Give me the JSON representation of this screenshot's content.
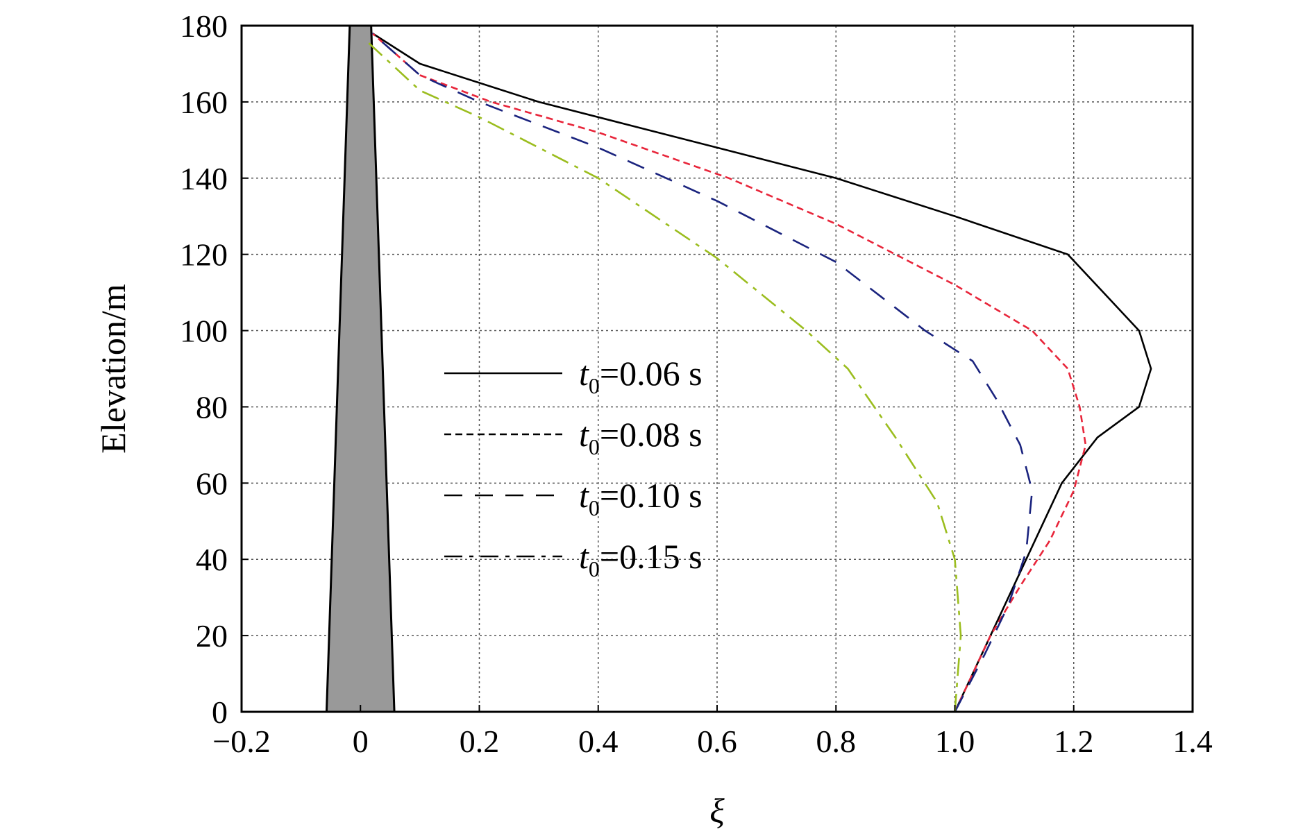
{
  "chart_data": {
    "type": "line",
    "title": "",
    "xlabel": "ξ",
    "ylabel": "Elevation/m",
    "xlim": [
      -0.2,
      1.4
    ],
    "ylim": [
      0,
      180
    ],
    "x_ticks": [
      "−0.2",
      "0",
      "0.2",
      "0.4",
      "0.6",
      "0.8",
      "1.0",
      "1.2",
      "1.4"
    ],
    "y_ticks": [
      "0",
      "20",
      "40",
      "60",
      "80",
      "100",
      "120",
      "140",
      "160",
      "180"
    ],
    "grid": true,
    "legend_position": "center",
    "structure_profile": {
      "description_shape": "tapered filled profile",
      "color": "#999999",
      "base_halfwidth": 0.057,
      "top_halfwidth": 0.018,
      "base_elevation": 0,
      "top_elevation": 180
    },
    "series": [
      {
        "name_var": "t",
        "name_sub": "0",
        "name_rest": "=0.06 s",
        "color": "#000000",
        "dash": "",
        "points": [
          [
            1.0,
            0
          ],
          [
            1.06,
            20
          ],
          [
            1.12,
            40
          ],
          [
            1.18,
            60
          ],
          [
            1.24,
            72
          ],
          [
            1.31,
            80
          ],
          [
            1.33,
            90
          ],
          [
            1.31,
            100
          ],
          [
            1.25,
            110
          ],
          [
            1.19,
            120
          ],
          [
            1.0,
            130
          ],
          [
            0.8,
            140
          ],
          [
            0.6,
            148
          ],
          [
            0.45,
            154
          ],
          [
            0.3,
            160
          ],
          [
            0.1,
            170
          ],
          [
            0.02,
            178
          ]
        ]
      },
      {
        "name_var": "t",
        "name_sub": "0",
        "name_rest": "=0.08 s",
        "color": "#e8253a",
        "dash": "10,6",
        "points": [
          [
            1.0,
            0
          ],
          [
            1.06,
            20
          ],
          [
            1.11,
            33
          ],
          [
            1.16,
            45
          ],
          [
            1.2,
            58
          ],
          [
            1.22,
            70
          ],
          [
            1.21,
            80
          ],
          [
            1.19,
            90
          ],
          [
            1.13,
            100
          ],
          [
            1.0,
            112
          ],
          [
            0.8,
            128
          ],
          [
            0.62,
            140
          ],
          [
            0.4,
            152
          ],
          [
            0.22,
            160
          ],
          [
            0.1,
            167
          ],
          [
            0.02,
            178
          ]
        ]
      },
      {
        "name_var": "t",
        "name_sub": "0",
        "name_rest": "=0.10 s",
        "color": "#1a237e",
        "dash": "26,18",
        "points": [
          [
            1.0,
            0
          ],
          [
            1.05,
            15
          ],
          [
            1.09,
            28
          ],
          [
            1.12,
            42
          ],
          [
            1.13,
            58
          ],
          [
            1.11,
            70
          ],
          [
            1.07,
            82
          ],
          [
            1.03,
            92
          ],
          [
            0.95,
            100
          ],
          [
            0.8,
            118
          ],
          [
            0.6,
            134
          ],
          [
            0.4,
            148
          ],
          [
            0.2,
            160
          ],
          [
            0.1,
            167
          ],
          [
            0.02,
            178
          ]
        ]
      },
      {
        "name_var": "t",
        "name_sub": "0",
        "name_rest": "=0.15 s",
        "color": "#9bbd1e",
        "dash": "26,10,6,10",
        "points": [
          [
            1.0,
            0
          ],
          [
            1.01,
            20
          ],
          [
            1.0,
            40
          ],
          [
            0.97,
            55
          ],
          [
            0.9,
            72
          ],
          [
            0.82,
            90
          ],
          [
            0.75,
            100
          ],
          [
            0.6,
            119
          ],
          [
            0.4,
            140
          ],
          [
            0.2,
            156
          ],
          [
            0.1,
            163
          ],
          [
            0.01,
            176
          ]
        ]
      }
    ]
  }
}
